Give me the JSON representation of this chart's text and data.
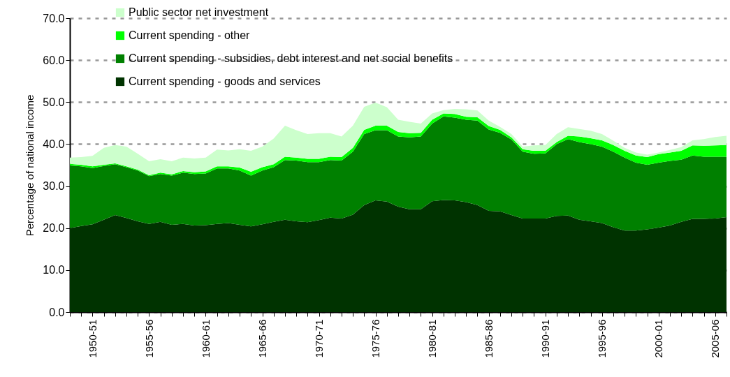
{
  "chart_data": {
    "type": "area",
    "stacked": true,
    "ylabel": "Percentage of national income",
    "categories": [
      null,
      null,
      "1950-51",
      null,
      null,
      null,
      null,
      "1955-56",
      null,
      null,
      null,
      null,
      "1960-61",
      null,
      null,
      null,
      null,
      "1965-66",
      null,
      null,
      null,
      null,
      "1970-71",
      null,
      null,
      null,
      null,
      "1975-76",
      null,
      null,
      null,
      null,
      "1980-81",
      null,
      null,
      null,
      null,
      "1985-86",
      null,
      null,
      null,
      null,
      "1990-91",
      null,
      null,
      null,
      null,
      "1995-96",
      null,
      null,
      null,
      null,
      "2000-01",
      null,
      null,
      null,
      null,
      "2005-06",
      null
    ],
    "series": [
      {
        "name": "Current spending - goods and services",
        "color": "#003300",
        "values": [
          20.0,
          20.5,
          20.9,
          22.0,
          23.1,
          22.4,
          21.6,
          21.0,
          21.5,
          20.8,
          21.0,
          20.6,
          20.7,
          21.0,
          21.2,
          20.8,
          20.4,
          20.9,
          21.5,
          22.0,
          21.6,
          21.4,
          21.9,
          22.5,
          22.3,
          23.2,
          25.5,
          26.6,
          26.3,
          25.1,
          24.5,
          24.5,
          26.4,
          26.7,
          26.6,
          26.2,
          25.5,
          24.1,
          24.0,
          23.1,
          22.3,
          22.3,
          22.3,
          22.9,
          23.0,
          22.0,
          21.6,
          21.2,
          20.2,
          19.4,
          19.4,
          19.7,
          20.1,
          20.6,
          21.5,
          22.2,
          22.2,
          22.3,
          22.6
        ]
      },
      {
        "name": "Current spending - subsidies, debt interest and net social benefits",
        "color": "#008000",
        "values": [
          14.9,
          14.2,
          13.4,
          12.8,
          12.1,
          12.1,
          12.1,
          11.4,
          11.4,
          11.7,
          12.2,
          12.3,
          12.3,
          13.2,
          13.0,
          12.9,
          12.1,
          12.8,
          13.0,
          14.2,
          14.5,
          14.3,
          13.8,
          13.7,
          13.8,
          15.0,
          16.9,
          16.7,
          17.0,
          16.7,
          17.1,
          17.3,
          18.5,
          19.9,
          19.7,
          19.6,
          20.1,
          19.4,
          18.7,
          18.0,
          15.9,
          15.4,
          15.5,
          17.1,
          18.2,
          18.5,
          18.4,
          18.2,
          18.0,
          17.4,
          16.2,
          15.4,
          15.5,
          15.4,
          14.8,
          15.1,
          14.8,
          14.7,
          14.4
        ]
      },
      {
        "name": "Current spending - other",
        "color": "#00ff00",
        "values": [
          0.4,
          0.4,
          0.4,
          0.3,
          0.2,
          0.2,
          0.2,
          0.2,
          0.3,
          0.3,
          0.4,
          0.4,
          0.5,
          0.5,
          0.5,
          0.7,
          0.9,
          0.8,
          0.7,
          0.8,
          0.7,
          0.8,
          0.8,
          0.8,
          0.8,
          0.9,
          1.0,
          1.1,
          1.1,
          1.1,
          1.0,
          0.9,
          0.9,
          0.7,
          0.9,
          0.7,
          0.8,
          0.8,
          0.7,
          0.5,
          0.6,
          0.7,
          0.6,
          0.5,
          0.8,
          1.3,
          1.4,
          1.5,
          1.6,
          1.6,
          1.7,
          1.8,
          2.0,
          2.0,
          2.1,
          2.4,
          2.6,
          2.7,
          2.8
        ]
      },
      {
        "name": "Public sector net investment",
        "color": "#ccffcc",
        "values": [
          1.5,
          1.8,
          2.5,
          4.0,
          4.4,
          4.7,
          3.8,
          3.3,
          3.2,
          3.1,
          3.2,
          3.3,
          3.3,
          4.0,
          3.8,
          4.4,
          5.0,
          4.9,
          6.1,
          7.4,
          6.5,
          5.9,
          6.1,
          5.6,
          4.9,
          5.3,
          5.5,
          5.5,
          4.4,
          2.9,
          2.7,
          2.2,
          1.5,
          0.8,
          1.2,
          1.8,
          1.6,
          1.3,
          0.7,
          0.8,
          0.6,
          1.3,
          1.4,
          1.9,
          2.0,
          1.8,
          1.8,
          1.5,
          1.0,
          0.7,
          0.7,
          0.6,
          0.4,
          0.6,
          0.9,
          1.2,
          1.6,
          2.0,
          2.2
        ]
      }
    ],
    "ylim": [
      0,
      70
    ],
    "yticks": [
      {
        "value": 0,
        "label": "0.0"
      },
      {
        "value": 10,
        "label": "10.0"
      },
      {
        "value": 20,
        "label": "20.0"
      },
      {
        "value": 30,
        "label": "30.0"
      },
      {
        "value": 40,
        "label": "40.0"
      },
      {
        "value": 50,
        "label": "50.0"
      },
      {
        "value": 60,
        "label": "60.0"
      },
      {
        "value": 70,
        "label": "70.0"
      }
    ],
    "grid": "y",
    "legend": "top left"
  }
}
